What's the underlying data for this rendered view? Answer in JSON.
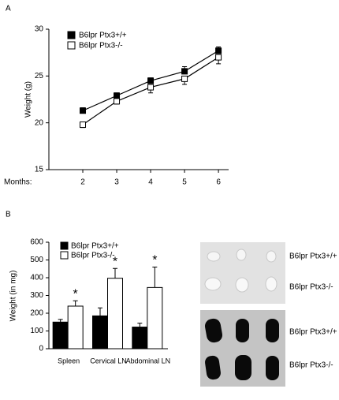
{
  "chart_data": [
    {
      "type": "line",
      "panel": "A",
      "xlabel": "Months:",
      "ylabel": "Weight (g)",
      "x": [
        2,
        3,
        4,
        5,
        6
      ],
      "xlim": [
        1,
        6.3
      ],
      "xticks": [
        2,
        3,
        4,
        5,
        6
      ],
      "ylim": [
        15,
        30
      ],
      "yticks": [
        15,
        20,
        25,
        30
      ],
      "series": [
        {
          "name": "B6lpr Ptx3+/+",
          "color": "#000000",
          "values": [
            21.3,
            22.9,
            24.5,
            25.5,
            27.7
          ],
          "errors": [
            0.3,
            0.3,
            0.3,
            0.5,
            0.4
          ]
        },
        {
          "name": "B6lpr Ptx3-/-",
          "color": "#ffffff",
          "values": [
            19.8,
            22.3,
            23.8,
            24.7,
            27.0
          ],
          "errors": [
            0.3,
            0.3,
            0.6,
            0.6,
            0.7
          ]
        }
      ]
    },
    {
      "type": "bar",
      "panel": "B",
      "ylabel": "Weight (in mg)",
      "categories": [
        "Spleen",
        "Cervical LN",
        "Abdominal LN"
      ],
      "ylim": [
        0,
        600
      ],
      "yticks": [
        0,
        100,
        200,
        300,
        400,
        500,
        600
      ],
      "series": [
        {
          "name": "B6lpr Ptx3+/+",
          "color": "#000000",
          "values": [
            150,
            185,
            122
          ],
          "errors": [
            15,
            45,
            22
          ]
        },
        {
          "name": "B6lpr Ptx3-/-",
          "color": "#ffffff",
          "values": [
            240,
            397,
            345
          ],
          "errors": [
            30,
            55,
            115
          ]
        }
      ],
      "annotations": [
        "*",
        "*",
        "*"
      ],
      "image_labels": [
        "B6lpr Ptx3+/+",
        "B6lpr Ptx3-/-",
        "B6lpr Ptx3+/+",
        "B6lpr Ptx3-/-"
      ]
    }
  ]
}
